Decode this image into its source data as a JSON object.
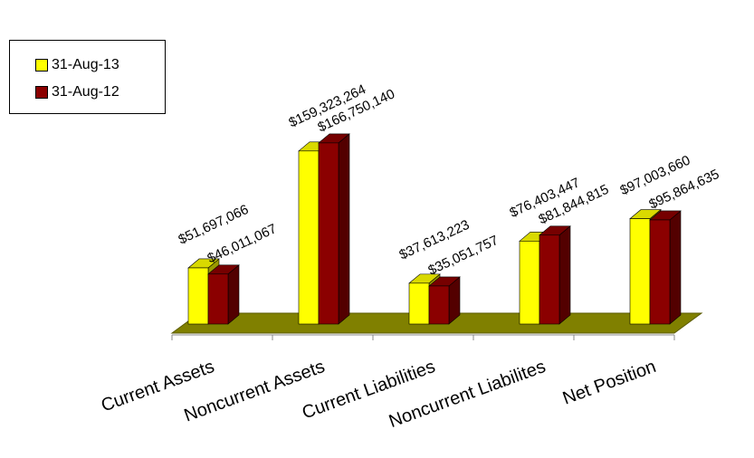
{
  "chart_data": {
    "type": "bar",
    "title": "",
    "xlabel": "",
    "ylabel": "",
    "categories": [
      "Current Assets",
      "Noncurrent Assets",
      "Current Liabilities",
      "Noncurrent Liabilites",
      "Net Position"
    ],
    "series": [
      {
        "name": "31-Aug-13",
        "color": "#ffff00",
        "values": [
          51697066,
          159323264,
          37613223,
          76403447,
          97003660
        ],
        "labels": [
          "$51,697,066",
          "$159,323,264",
          "$37,613,223",
          "$76,403,447",
          "$97,003,660"
        ]
      },
      {
        "name": "31-Aug-12",
        "color": "#8b0000",
        "values": [
          46011067,
          166750140,
          35051757,
          81844815,
          95864635
        ],
        "labels": [
          "$46,011,067",
          "$166,750,140",
          "$35,051,757",
          "$81,844,815",
          "$95,864,635"
        ]
      }
    ],
    "floor_color": "#808000",
    "ylim": [
      0,
      170000000
    ],
    "legend_position": "top-left",
    "grid": false
  }
}
